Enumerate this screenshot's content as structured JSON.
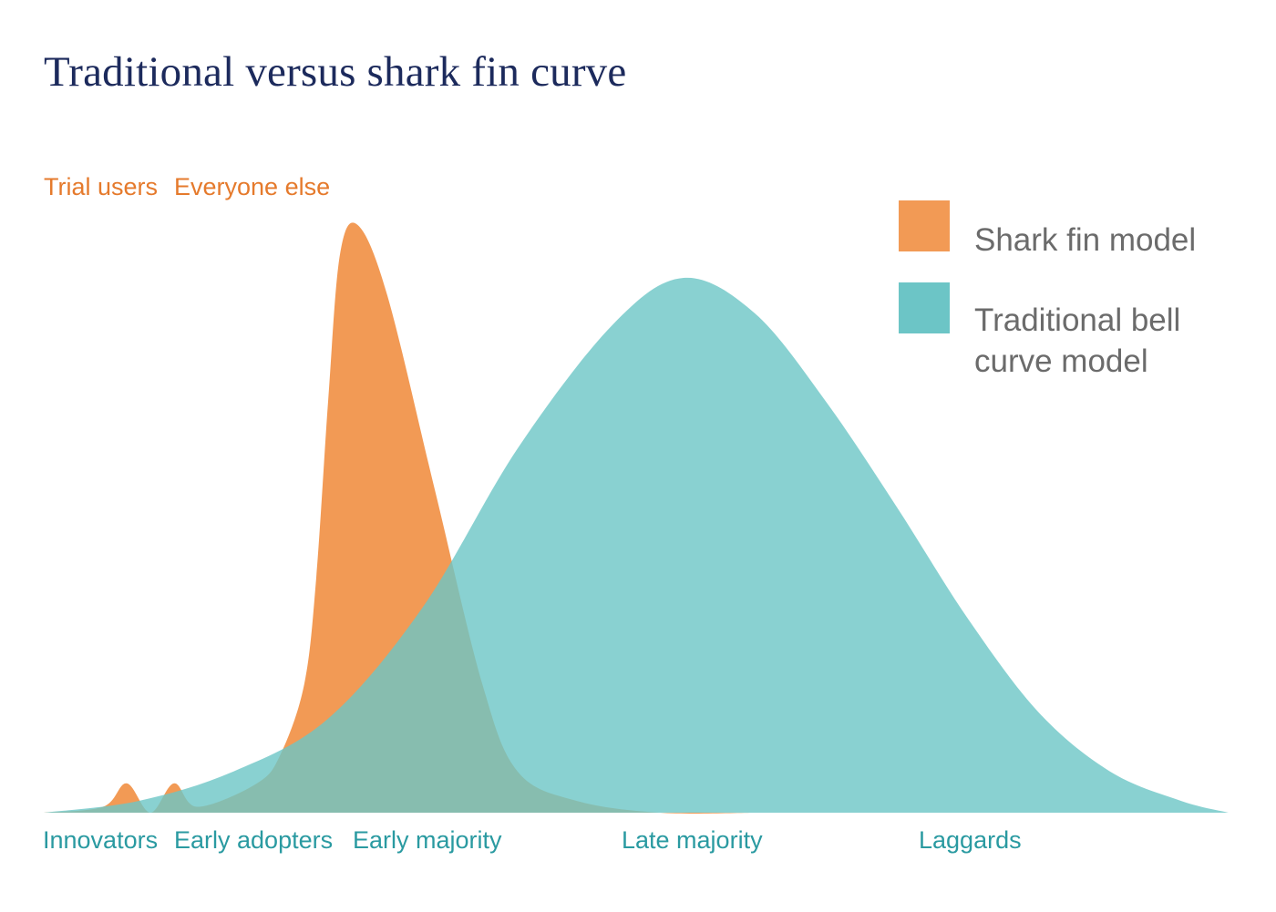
{
  "chart_data": {
    "type": "area",
    "title": "Traditional versus shark fin curve",
    "top_labels": [
      "Trial users",
      "Everyone else"
    ],
    "categories": [
      "Innovators",
      "Early adopters",
      "Early majority",
      "Late majority",
      "Laggards"
    ],
    "legend": {
      "position": "top-right"
    },
    "series": [
      {
        "name": "Shark fin model",
        "color": "#f29a55",
        "opacity": 1,
        "points": [
          [
            0,
            0.0
          ],
          [
            0.05,
            0.01
          ],
          [
            0.07,
            0.05
          ],
          [
            0.09,
            0.0
          ],
          [
            0.11,
            0.05
          ],
          [
            0.13,
            0.01
          ],
          [
            0.18,
            0.05
          ],
          [
            0.2,
            0.1
          ],
          [
            0.22,
            0.22
          ],
          [
            0.23,
            0.4
          ],
          [
            0.24,
            0.7
          ],
          [
            0.25,
            0.95
          ],
          [
            0.265,
            1.0
          ],
          [
            0.29,
            0.88
          ],
          [
            0.33,
            0.55
          ],
          [
            0.37,
            0.22
          ],
          [
            0.4,
            0.07
          ],
          [
            0.45,
            0.02
          ],
          [
            0.52,
            0.0
          ],
          [
            0.6,
            0.0
          ]
        ]
      },
      {
        "name": "Traditional bell curve model",
        "color": "#6cc5c6",
        "opacity": 0.8,
        "points": [
          [
            0.0,
            0.0
          ],
          [
            0.08,
            0.02
          ],
          [
            0.16,
            0.07
          ],
          [
            0.24,
            0.16
          ],
          [
            0.32,
            0.35
          ],
          [
            0.4,
            0.62
          ],
          [
            0.48,
            0.83
          ],
          [
            0.54,
            0.91
          ],
          [
            0.6,
            0.85
          ],
          [
            0.66,
            0.7
          ],
          [
            0.72,
            0.52
          ],
          [
            0.78,
            0.33
          ],
          [
            0.84,
            0.17
          ],
          [
            0.9,
            0.07
          ],
          [
            0.96,
            0.02
          ],
          [
            1.0,
            0.0
          ]
        ]
      }
    ]
  }
}
